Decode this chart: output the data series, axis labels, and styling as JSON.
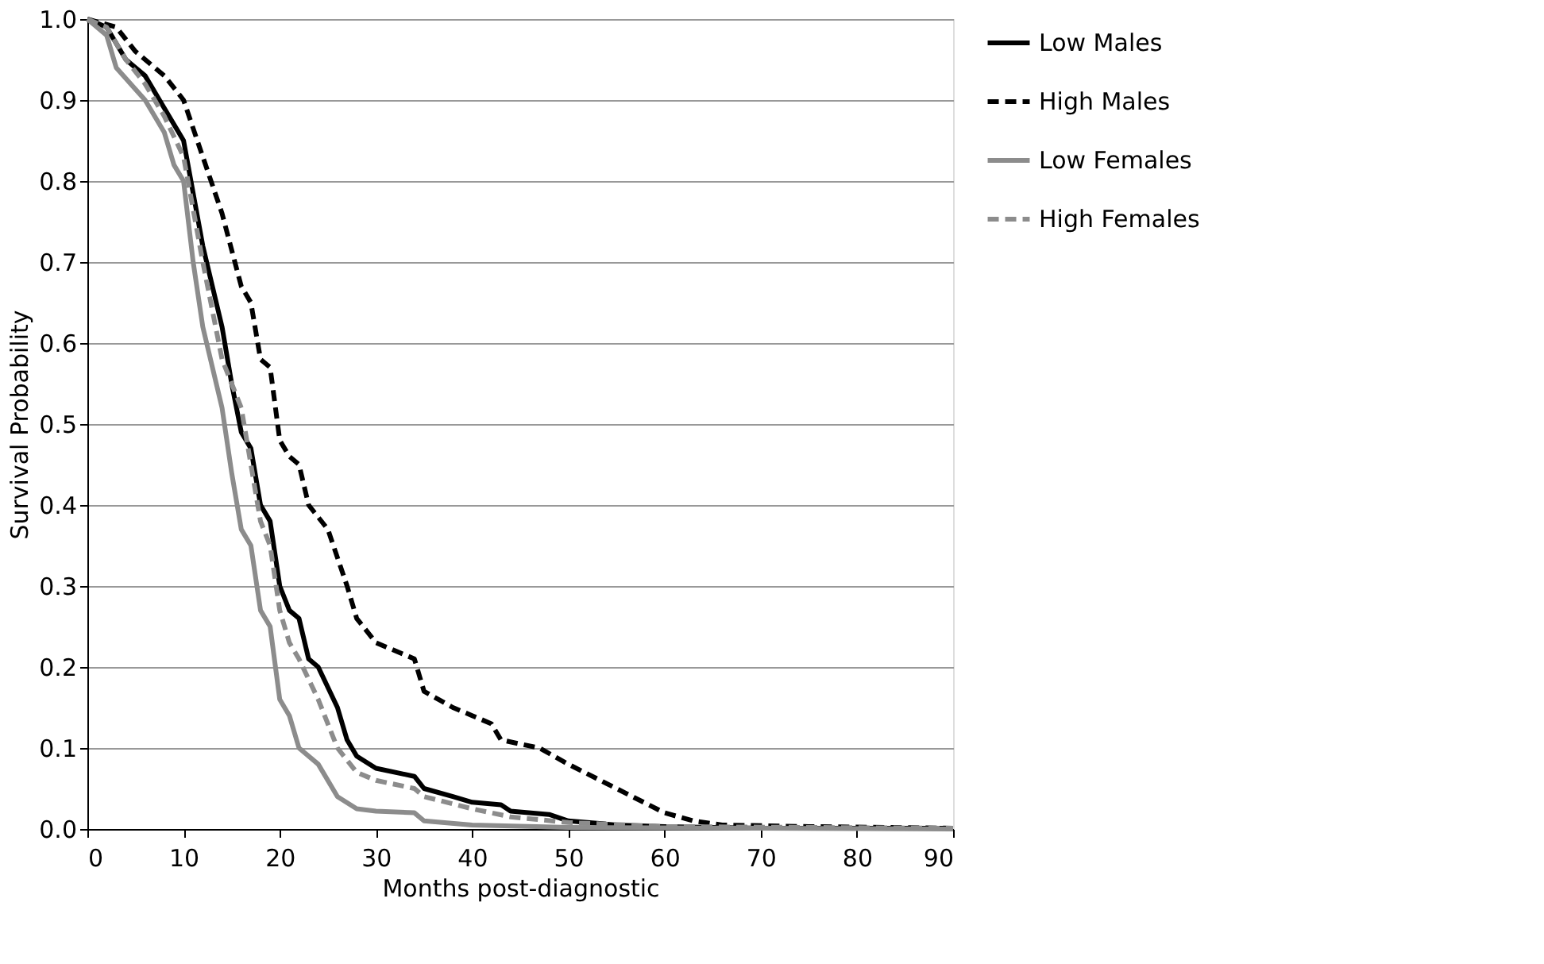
{
  "chart_data": {
    "type": "line",
    "xlabel": "Months post-diagnostic",
    "ylabel": "Survival Probability",
    "xlim": [
      0,
      90
    ],
    "xticks": [
      0,
      10,
      20,
      30,
      40,
      50,
      60,
      70,
      80,
      90
    ],
    "ylim": [
      0,
      1
    ],
    "yticks": [
      {
        "value": 0,
        "label": "0.0"
      },
      0.1,
      0.2,
      0.3,
      0.4,
      0.5,
      0.6,
      0.7,
      0.8,
      0.9,
      {
        "value": 1,
        "label": "1.0"
      }
    ],
    "grid": "y",
    "legend": "right",
    "marker": "none",
    "series": [
      {
        "name": "Low Males",
        "color": "#000000",
        "line_style": "solid",
        "x": [
          0,
          2,
          4,
          6,
          8,
          10,
          12,
          14,
          15,
          16,
          17,
          18,
          19,
          20,
          21,
          22,
          23,
          24,
          26,
          27,
          28,
          30,
          34,
          35,
          38,
          40,
          43,
          44,
          48,
          50,
          55,
          60,
          70,
          90
        ],
        "values": [
          1,
          0.99,
          0.95,
          0.93,
          0.89,
          0.85,
          0.72,
          0.62,
          0.55,
          0.49,
          0.47,
          0.4,
          0.38,
          0.3,
          0.27,
          0.26,
          0.21,
          0.2,
          0.15,
          0.11,
          0.09,
          0.075,
          0.065,
          0.05,
          0.04,
          0.033,
          0.03,
          0.022,
          0.018,
          0.01,
          0.005,
          0.003,
          0.001,
          0.001
        ]
      },
      {
        "name": "High Males",
        "color": "#000000",
        "line_style": "dashed",
        "x": [
          0,
          3,
          5,
          8,
          10,
          12,
          14,
          16,
          17,
          18,
          19,
          20,
          21,
          22,
          23,
          25,
          27,
          28,
          30,
          32,
          34,
          35,
          38,
          40,
          42,
          43,
          47,
          50,
          55,
          60,
          63,
          66,
          75,
          90
        ],
        "values": [
          1,
          0.99,
          0.96,
          0.93,
          0.9,
          0.83,
          0.76,
          0.67,
          0.65,
          0.58,
          0.57,
          0.48,
          0.46,
          0.45,
          0.4,
          0.37,
          0.3,
          0.26,
          0.23,
          0.22,
          0.21,
          0.17,
          0.15,
          0.14,
          0.13,
          0.11,
          0.1,
          0.08,
          0.05,
          0.02,
          0.01,
          0.005,
          0.003,
          0.001
        ]
      },
      {
        "name": "Low Females",
        "color": "#8c8c8c",
        "line_style": "solid",
        "x": [
          0,
          2,
          3,
          6,
          8,
          9,
          10,
          11,
          12,
          14,
          15,
          16,
          17,
          18,
          19,
          20,
          21,
          22,
          24,
          26,
          28,
          30,
          34,
          35,
          40,
          50,
          90
        ],
        "values": [
          1,
          0.98,
          0.94,
          0.9,
          0.86,
          0.82,
          0.8,
          0.7,
          0.62,
          0.52,
          0.44,
          0.37,
          0.35,
          0.27,
          0.25,
          0.16,
          0.14,
          0.1,
          0.08,
          0.04,
          0.025,
          0.022,
          0.02,
          0.01,
          0.005,
          0.002,
          0
        ]
      },
      {
        "name": "High Females",
        "color": "#8c8c8c",
        "line_style": "dashed",
        "x": [
          0,
          2,
          4,
          6,
          8,
          10,
          12,
          14,
          16,
          17,
          18,
          19,
          20,
          21,
          22,
          24,
          26,
          28,
          30,
          34,
          35,
          40,
          44,
          50,
          60,
          90
        ],
        "values": [
          1,
          0.99,
          0.95,
          0.92,
          0.88,
          0.83,
          0.7,
          0.58,
          0.52,
          0.45,
          0.38,
          0.35,
          0.27,
          0.23,
          0.21,
          0.16,
          0.1,
          0.07,
          0.06,
          0.05,
          0.04,
          0.025,
          0.015,
          0.008,
          0.003,
          0.001
        ]
      }
    ]
  }
}
